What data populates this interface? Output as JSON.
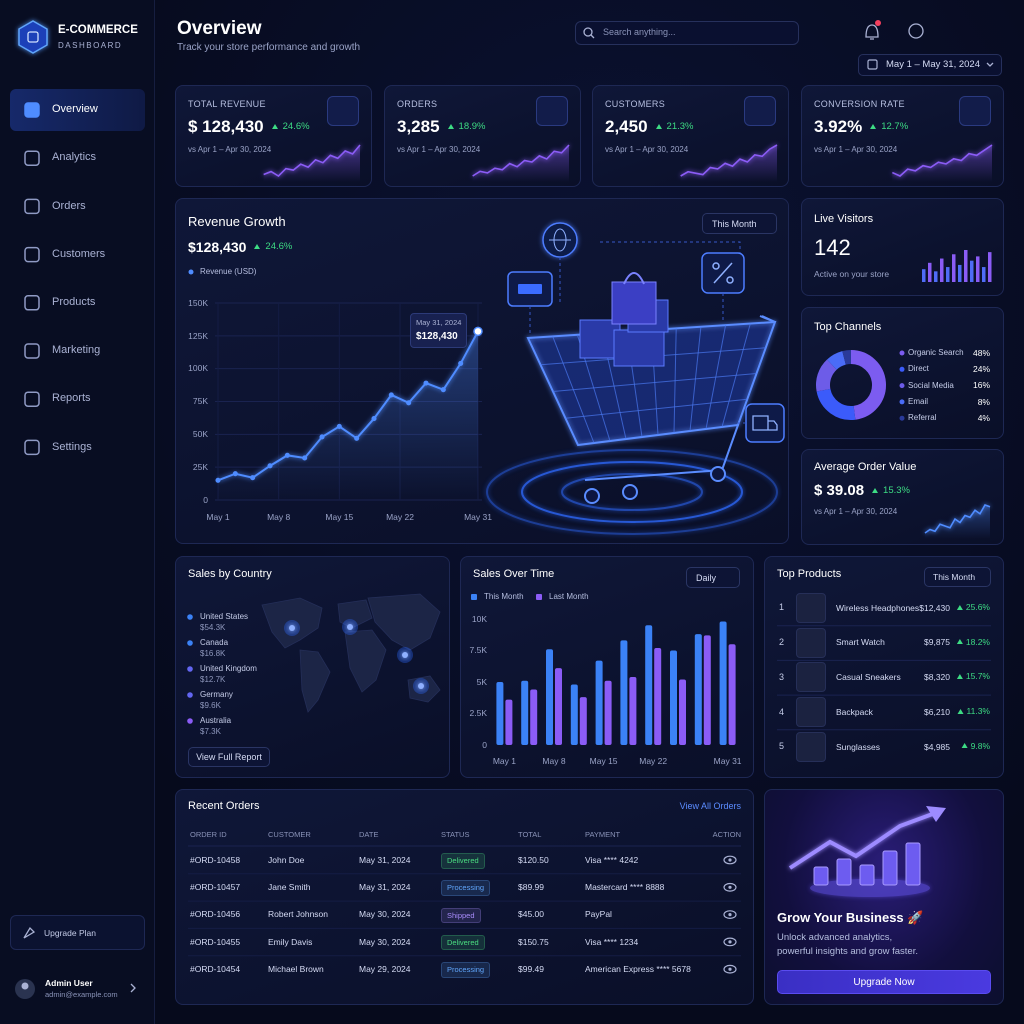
{
  "sidebar": {
    "brand": "E-COMMERCE",
    "brand_sub": "DASHBOARD",
    "nav": [
      "Overview",
      "Analytics",
      "Orders",
      "Customers",
      "Products",
      "Marketing",
      "Reports",
      "Settings"
    ],
    "active": 0,
    "upgrade": "Upgrade Plan",
    "user": {
      "name": "Admin User",
      "email": "admin@example.com"
    }
  },
  "header": {
    "title": "Overview",
    "subtitle": "Track your store performance and growth",
    "search_placeholder": "Search anything...",
    "date_range": "May 1 – May 31, 2024"
  },
  "kpis": [
    {
      "label": "TOTAL REVENUE",
      "value": "$ 128,430",
      "change": "24.6%",
      "compare": "vs Apr 1 – Apr 30, 2024",
      "spark": [
        20,
        22,
        19,
        24,
        23,
        27,
        25,
        30,
        28,
        33,
        31,
        36,
        34,
        40
      ]
    },
    {
      "label": "ORDERS",
      "value": "3,285",
      "change": "18.9%",
      "compare": "vs Apr 1 – Apr 30, 2024",
      "spark": [
        18,
        21,
        20,
        23,
        22,
        26,
        24,
        28,
        27,
        31,
        29,
        34,
        33,
        38
      ]
    },
    {
      "label": "CUSTOMERS",
      "value": "2,450",
      "change": "21.3%",
      "compare": "vs Apr 1 – Apr 30, 2024",
      "spark": [
        15,
        18,
        17,
        16,
        21,
        20,
        24,
        22,
        27,
        25,
        30,
        29,
        34,
        37
      ]
    },
    {
      "label": "CONVERSION RATE",
      "value": "3.92%",
      "change": "12.7%",
      "compare": "vs Apr 1 – Apr 30, 2024",
      "spark": [
        22,
        20,
        24,
        23,
        26,
        25,
        28,
        27,
        30,
        29,
        33,
        32,
        35,
        38
      ]
    }
  ],
  "chart_data": [
    {
      "type": "line",
      "title": "Revenue Growth",
      "value": "$128,430",
      "change": "24.6%",
      "period": "This Month",
      "xlim": [
        1,
        31
      ],
      "xticks": [
        {
          "value": 1,
          "label": "May 1"
        },
        {
          "value": 8,
          "label": "May 8"
        },
        {
          "value": 15,
          "label": "May 15"
        },
        {
          "value": 22,
          "label": "May 22"
        },
        {
          "value": 31,
          "label": "May 31"
        }
      ],
      "ylim": [
        0,
        150000
      ],
      "yticks": [
        0,
        {
          "value": 25000,
          "label": "25K"
        },
        {
          "value": 50000,
          "label": "50K"
        },
        {
          "value": 75000,
          "label": "75K"
        },
        {
          "value": 100000,
          "label": "100K"
        },
        {
          "value": 125000,
          "label": "125K"
        },
        {
          "value": 150000,
          "label": "150K"
        }
      ],
      "grid": true,
      "x": [
        1,
        3,
        5,
        7,
        9,
        11,
        13,
        15,
        17,
        19,
        21,
        23,
        25,
        27,
        29,
        31
      ],
      "series": [
        {
          "name": "Revenue (USD)",
          "color": "#4f8cff",
          "values": [
            15000,
            20000,
            17000,
            26000,
            34000,
            32000,
            48000,
            56000,
            47000,
            62000,
            80000,
            74000,
            89000,
            84000,
            104000,
            128430
          ]
        }
      ],
      "tooltip": {
        "date": "May 31, 2024",
        "value": "$128,430"
      }
    },
    {
      "type": "bar",
      "title": "Sales Over Time",
      "period": "Daily",
      "categories": [
        "May 1",
        null,
        "May 8",
        null,
        "May 15",
        null,
        "May 22",
        null,
        null,
        "May 31"
      ],
      "ylim": [
        0,
        10000
      ],
      "yticks": [
        0,
        {
          "value": 2500,
          "label": "2.5K"
        },
        {
          "value": 5000,
          "label": "5K"
        },
        {
          "value": 7500,
          "label": "7.5K"
        },
        {
          "value": 10000,
          "label": "10K"
        }
      ],
      "grid": false,
      "series": [
        {
          "name": "This Month",
          "color": "#3b82f6",
          "values": [
            5000,
            5100,
            7600,
            4800,
            6700,
            8300,
            9500,
            7500,
            8800,
            9800
          ]
        },
        {
          "name": "Last Month",
          "color": "#8b5cf6",
          "values": [
            3600,
            4400,
            6100,
            3800,
            5100,
            5400,
            7700,
            5200,
            8700,
            8000
          ]
        }
      ]
    },
    {
      "type": "pie",
      "title": "Top Channels",
      "categories": [
        "Organic Search",
        "Direct",
        "Social Media",
        "Email",
        "Referral"
      ],
      "values": [
        48,
        24,
        16,
        8,
        4
      ],
      "value_labels": [
        "48%",
        "24%",
        "16%",
        "8%",
        "4%"
      ],
      "colors": [
        "#7c5cf0",
        "#3b5bfa",
        "#6d5ce8",
        "#4a6cf7",
        "#2a3a9a"
      ]
    }
  ],
  "live_visitors": {
    "title": "Live Visitors",
    "value": "142",
    "caption": "Active on your store",
    "bars": [
      12,
      18,
      10,
      22,
      14,
      26,
      16,
      30,
      20,
      24,
      14,
      28
    ]
  },
  "avg_order": {
    "title": "Average Order Value",
    "value": "$ 39.08",
    "change": "15.3%",
    "compare": "vs Apr 1 – Apr 30, 2024",
    "spark": [
      18,
      20,
      19,
      23,
      22,
      21,
      26,
      24,
      28,
      27,
      31,
      29,
      34,
      33
    ]
  },
  "sales_by_country": {
    "title": "Sales by Country",
    "entries": [
      {
        "name": "United States",
        "value": "$54.3K",
        "color": "#3b82f6"
      },
      {
        "name": "Canada",
        "value": "$16.8K",
        "color": "#3b82f6"
      },
      {
        "name": "United Kingdom",
        "value": "$12.7K",
        "color": "#6366f1"
      },
      {
        "name": "Germany",
        "value": "$9.6K",
        "color": "#6366f1"
      },
      {
        "name": "Australia",
        "value": "$7.3K",
        "color": "#8b5cf6"
      }
    ],
    "button": "View Full Report"
  },
  "top_products": {
    "title": "Top Products",
    "period": "This Month",
    "rows": [
      {
        "rank": 1,
        "name": "Wireless Headphones",
        "price": "$12,430",
        "change": "25.6%"
      },
      {
        "rank": 2,
        "name": "Smart Watch",
        "price": "$9,875",
        "change": "18.2%"
      },
      {
        "rank": 3,
        "name": "Casual Sneakers",
        "price": "$8,320",
        "change": "15.7%"
      },
      {
        "rank": 4,
        "name": "Backpack",
        "price": "$6,210",
        "change": "11.3%"
      },
      {
        "rank": 5,
        "name": "Sunglasses",
        "price": "$4,985",
        "change": "9.8%"
      }
    ]
  },
  "recent_orders": {
    "title": "Recent Orders",
    "link": "View All Orders",
    "columns": [
      "ORDER ID",
      "CUSTOMER",
      "DATE",
      "STATUS",
      "TOTAL",
      "PAYMENT",
      "ACTION"
    ],
    "rows": [
      [
        "#ORD-10458",
        "John Doe",
        "May 31, 2024",
        "Delivered",
        "$120.50",
        "Visa **** 4242"
      ],
      [
        "#ORD-10457",
        "Jane Smith",
        "May 31, 2024",
        "Processing",
        "$89.99",
        "Mastercard **** 8888"
      ],
      [
        "#ORD-10456",
        "Robert Johnson",
        "May 30, 2024",
        "Shipped",
        "$45.00",
        "PayPal"
      ],
      [
        "#ORD-10455",
        "Emily Davis",
        "May 30, 2024",
        "Delivered",
        "$150.75",
        "Visa **** 1234"
      ],
      [
        "#ORD-10454",
        "Michael Brown",
        "May 29, 2024",
        "Processing",
        "$99.49",
        "American Express **** 5678"
      ]
    ],
    "status_colors": [
      "#4ade80",
      "#60a5fa",
      "#a78bfa",
      "#4ade80",
      "#60a5fa"
    ]
  },
  "promo": {
    "title": "Grow Your Business 🚀",
    "lines": [
      "Unlock advanced analytics,",
      "powerful insights and grow faster."
    ],
    "button": "Upgrade Now"
  }
}
